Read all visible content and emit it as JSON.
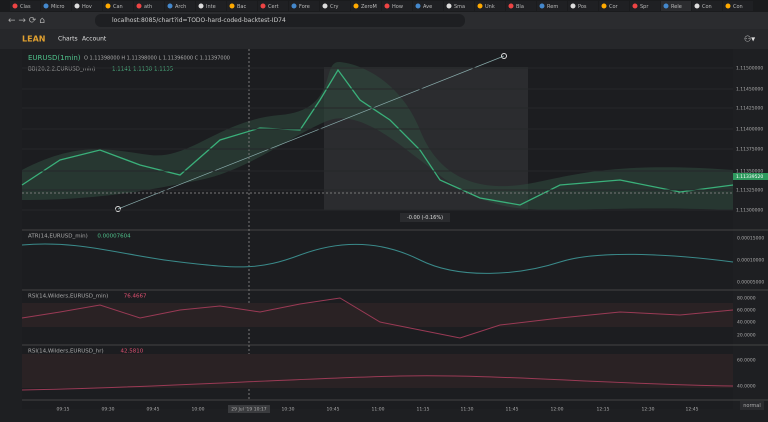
{
  "browser": {
    "tabs": [
      "Clas",
      "Micro",
      "Hov",
      "Can",
      "ath",
      "Arch",
      "Inte",
      "Bac",
      "Cert",
      "Fore",
      "Cry",
      "ZeroM",
      "How",
      "Ave",
      "Sma",
      "Unk",
      "Bla",
      "Rem",
      "Pos",
      "Cor",
      "Spr",
      "Rele",
      "Con",
      "Con"
    ],
    "url": "localhost:8085/chart?id=TODO-hard-coded-backtest-ID74"
  },
  "header": {
    "logo": "LEAN",
    "nav": [
      "Charts",
      "Account"
    ]
  },
  "main_pane": {
    "symbol": "EURUSD(1min)",
    "ohlc": "O 1.11398000 H 1.11398000 L 1.11396000 C 1.11397000",
    "indicator": "BB(20,2.2,EURUSD_min)",
    "indicator_values": "1.1141 1.1138 1.1135",
    "price_axis": [
      "1.11500000",
      "1.11450000",
      "1.11425000",
      "1.11400000",
      "1.11375000",
      "1.11350000",
      "1.11325000",
      "1.11300000"
    ],
    "last_price": "1.11339520",
    "measure": "-0.00 (-0.16%)"
  },
  "panes": [
    {
      "name": "ATR(14,EURUSD_min)",
      "value": "0.00007604",
      "axis": [
        "0.00015000",
        "0.00010000",
        "0.00005000"
      ]
    },
    {
      "name": "RSI(14,Wilders,EURUSD_min)",
      "value": "76.4667",
      "axis": [
        "80.0000",
        "60.0000",
        "40.0000",
        "20.0000"
      ]
    },
    {
      "name": "RSI(14,Wilders,EURUSD_hr)",
      "value": "42.5810",
      "axis": [
        "60.0000",
        "40.0000"
      ]
    }
  ],
  "time_axis": [
    "09:15",
    "09:30",
    "09:45",
    "10:00",
    "29 Jul '19 10:17",
    "10:30",
    "10:45",
    "11:00",
    "11:15",
    "11:30",
    "11:45",
    "12:00",
    "12:15",
    "12:30",
    "12:45"
  ],
  "footer": "normal"
}
